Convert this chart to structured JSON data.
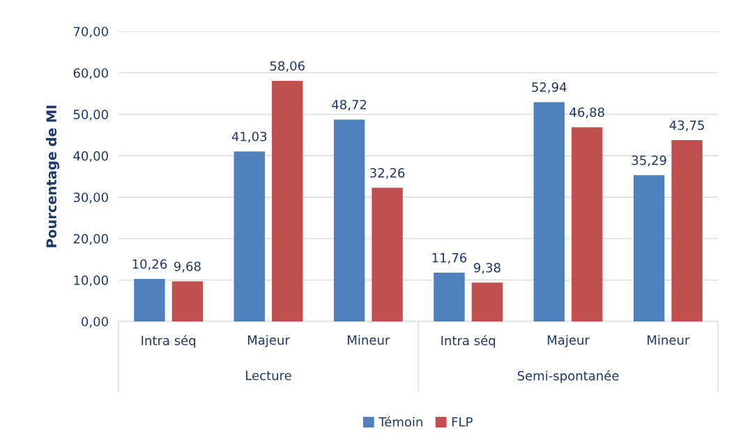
{
  "chart_data": {
    "type": "bar",
    "ylabel": "Pourcentage de MI",
    "categories": [
      "Intra séq",
      "Majeur",
      "Mineur",
      "Intra séq",
      "Majeur",
      "Mineur"
    ],
    "series": [
      {
        "name": "Témoin",
        "color": "#4f81bd",
        "values": [
          10.26,
          41.03,
          48.72,
          11.76,
          52.94,
          35.29
        ],
        "value_labels": [
          "10,26",
          "41,03",
          "48,72",
          "11,76",
          "52,94",
          "35,29"
        ]
      },
      {
        "name": "FLP",
        "color": "#c0504d",
        "values": [
          9.68,
          58.06,
          32.26,
          9.38,
          46.88,
          43.75
        ],
        "value_labels": [
          "9,68",
          "58,06",
          "32,26",
          "9,38",
          "46,88",
          "43,75"
        ]
      }
    ],
    "annotations": [
      "Lecture",
      "Semi-spontanée"
    ],
    "ylim": [
      0,
      70
    ],
    "yticks": [
      {
        "value": 0,
        "label": "0,00"
      },
      {
        "value": 10,
        "label": "10,00"
      },
      {
        "value": 20,
        "label": "20,00"
      },
      {
        "value": 30,
        "label": "30,00"
      },
      {
        "value": 40,
        "label": "40,00"
      },
      {
        "value": 50,
        "label": "50,00"
      },
      {
        "value": 60,
        "label": "60,00"
      },
      {
        "value": 70,
        "label": "70,00"
      }
    ],
    "grid": "y",
    "legend": "bottom"
  }
}
